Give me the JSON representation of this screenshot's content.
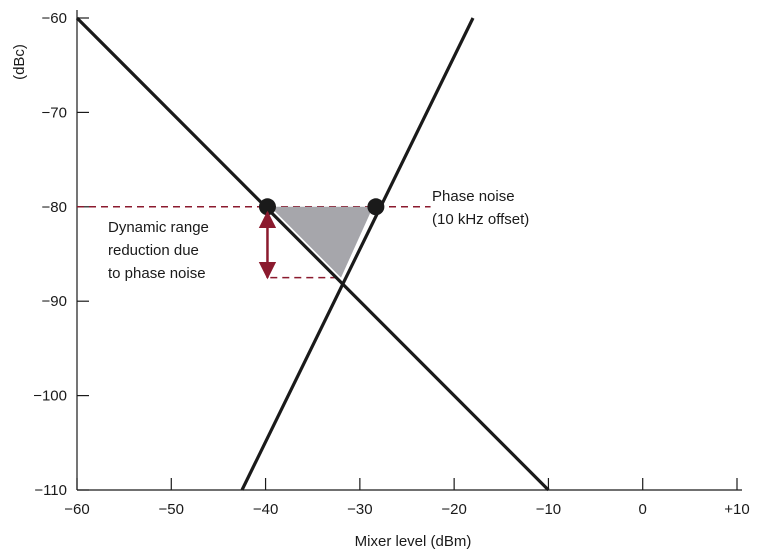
{
  "chart_data": {
    "type": "line",
    "title": "",
    "xlabel": "Mixer level (dBm)",
    "ylabel": "(dBc)",
    "xlim": [
      -60,
      10
    ],
    "ylim": [
      -110,
      -60
    ],
    "x_ticks": [
      -60,
      -50,
      -40,
      -30,
      -20,
      -10,
      0,
      10
    ],
    "x_tick_labels": [
      "−60",
      "−50",
      "−40",
      "−30",
      "−20",
      "−10",
      "0",
      "+10"
    ],
    "y_ticks": [
      -60,
      -70,
      -80,
      -90,
      -100,
      -110
    ],
    "y_tick_labels": [
      "−60",
      "−70",
      "−80",
      "−90",
      "−100",
      "−110"
    ],
    "grid": false,
    "series": [
      {
        "x": [
          -60,
          -10
        ],
        "y": [
          -60,
          -110
        ],
        "color": "#1a1a1a"
      },
      {
        "x": [
          -42.5,
          -18
        ],
        "y": [
          -110,
          -60
        ],
        "color": "#1a1a1a"
      }
    ],
    "phase_noise_level": {
      "y": -80,
      "x_range": [
        -60,
        -22.5
      ],
      "color": "#8b1a2e",
      "label_lines": [
        "Phase noise",
        "(10 kHz offset)"
      ]
    },
    "reduction_level": {
      "y": -87.5,
      "x_range": [
        -39.5,
        -32
      ]
    },
    "markers": [
      {
        "x": -39.8,
        "y": -80
      },
      {
        "x": -28.3,
        "y": -80
      }
    ],
    "shaded_region": {
      "points": [
        [
          -39.5,
          -80
        ],
        [
          -28.6,
          -80
        ],
        [
          -32,
          -87.5
        ]
      ],
      "color": "#a6a6ab"
    },
    "arrow": {
      "x": -39.8,
      "y_range": [
        -80.6,
        -87.5
      ],
      "color": "#8b1a2e",
      "label_lines": [
        "Dynamic range",
        "reduction due",
        "to phase noise"
      ]
    }
  }
}
